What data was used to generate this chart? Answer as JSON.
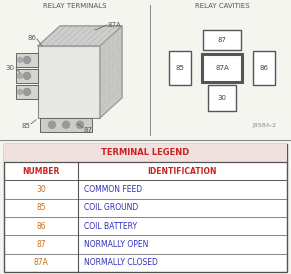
{
  "bg_color": "#f5f5f0",
  "relay_terminals_label": "RELAY TERMINALS",
  "relay_cavities_label": "RELAY CAVITIES",
  "figure_id": "J958A-2",
  "terminal_legend_header": "TERMINAL LEGEND",
  "col1_header": "NUMBER",
  "col2_header": "IDENTIFICATION",
  "table_rows": [
    [
      "30",
      "COMMON FEED"
    ],
    [
      "85",
      "COIL GROUND"
    ],
    [
      "86",
      "COIL BATTERY"
    ],
    [
      "87",
      "NORMALLY OPEN"
    ],
    [
      "87A",
      "NORMALLY CLOSED"
    ]
  ],
  "header_color": "#f0e0e0",
  "header_text_color": "#cc2222",
  "col_header_text_color": "#cc2222",
  "number_color": "#c87020",
  "id_color": "#3030b8",
  "table_border_color": "#555555",
  "divider_color": "#888888",
  "cavity_box_color": "#555555",
  "sketch_color": "#888888",
  "label_color": "#555555",
  "annot_color": "#888888",
  "top_section_bg": "#f5f5f0",
  "table_bg": "#ffffff"
}
